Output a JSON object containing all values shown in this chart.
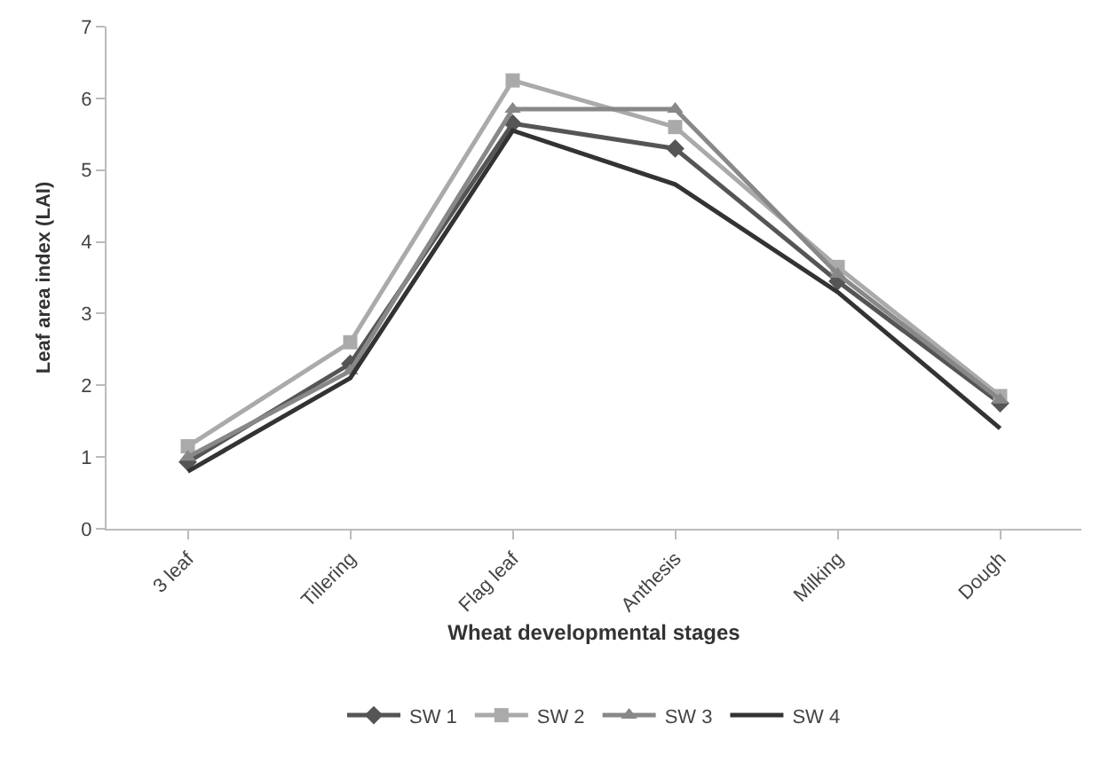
{
  "chart_data": {
    "type": "line",
    "xlabel": "Wheat developmental stages",
    "ylabel": "Leaf area index (LAI)",
    "categories": [
      "3 leaf",
      "Tillering",
      "Flag leaf",
      "Anthesis",
      "Milking",
      "Dough"
    ],
    "ylim": [
      0,
      7
    ],
    "yticks": [
      0,
      1,
      2,
      3,
      4,
      5,
      6,
      7
    ],
    "grid": false,
    "legend": "bottom",
    "series": [
      {
        "name": "SW 1",
        "color": "#555555",
        "marker": "diamond",
        "values": [
          0.93,
          2.3,
          5.65,
          5.3,
          3.45,
          1.75
        ]
      },
      {
        "name": "SW 2",
        "color": "#aaaaaa",
        "marker": "square",
        "values": [
          1.15,
          2.6,
          6.25,
          5.6,
          3.65,
          1.85
        ]
      },
      {
        "name": "SW 3",
        "color": "#888888",
        "marker": "triangle",
        "values": [
          1.0,
          2.2,
          5.85,
          5.85,
          3.55,
          1.8
        ]
      },
      {
        "name": "SW 4",
        "color": "#333333",
        "marker": "none",
        "values": [
          0.8,
          2.1,
          5.55,
          4.8,
          3.3,
          1.4
        ]
      }
    ]
  }
}
